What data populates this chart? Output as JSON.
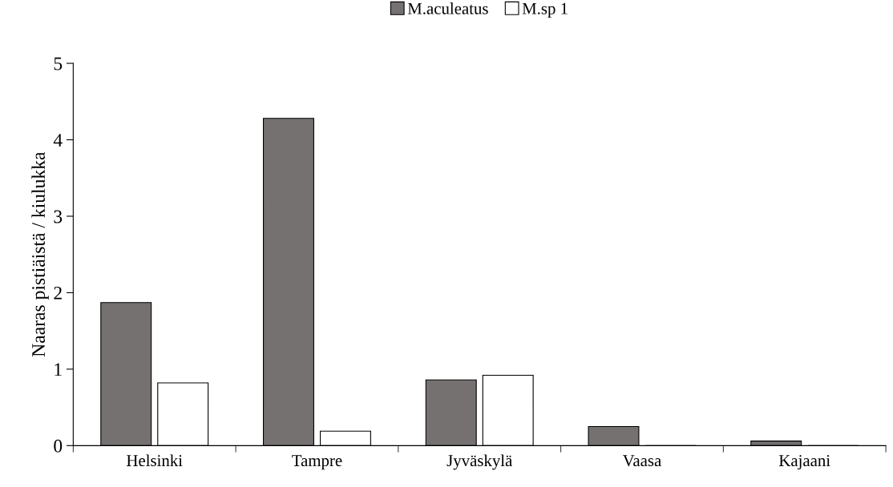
{
  "chart_data": {
    "type": "bar",
    "ylabel": "Naaras pistiäistä / kiulukka",
    "categories": [
      "Helsinki",
      "Tampre",
      "Jyväskylä",
      "Vaasa",
      "Kajaani"
    ],
    "series": [
      {
        "name": "M.aculeatus",
        "color": "#767171",
        "values": [
          1.87,
          4.28,
          0.86,
          0.25,
          0.06
        ]
      },
      {
        "name": "M.sp 1",
        "color": "#ffffff",
        "values": [
          0.82,
          0.19,
          0.92,
          0,
          0
        ]
      }
    ],
    "ylim": [
      0,
      5
    ],
    "yticks": [
      0,
      1,
      2,
      3,
      4,
      5
    ],
    "grid": false,
    "legend": "top"
  }
}
